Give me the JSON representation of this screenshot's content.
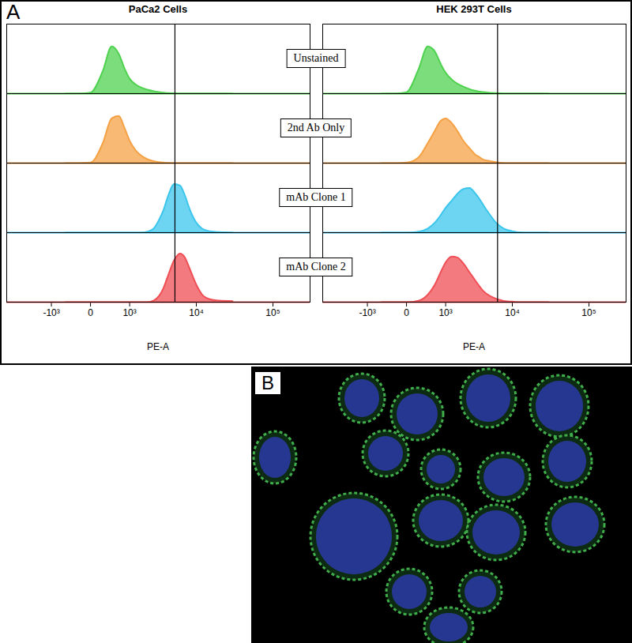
{
  "figure_label": "A",
  "chart_data": [
    {
      "type": "area",
      "title": "PaCa2 Cells",
      "xlabel": "PE-A",
      "log": "x",
      "tick_labels": "x",
      "x": [
        -500,
        -200,
        0,
        200,
        400,
        600,
        800,
        1000,
        1300,
        1600,
        2000,
        2500,
        3000,
        3500,
        4000,
        5000,
        6000,
        7000,
        8000,
        10000,
        12000,
        15000,
        20000,
        30000
      ],
      "series": [
        {
          "name": "Unstained",
          "color": "#4fd24f",
          "values": [
            0,
            0,
            2,
            45,
            95,
            80,
            50,
            30,
            18,
            12,
            8,
            5,
            3,
            2,
            1,
            0.5,
            0,
            0,
            0,
            0,
            0,
            0,
            0,
            0
          ]
        },
        {
          "name": "2nd Ab Only",
          "color": "#f5a145",
          "values": [
            0,
            0,
            1,
            40,
            90,
            95,
            70,
            45,
            25,
            15,
            8,
            4,
            2,
            1,
            0.5,
            0,
            0,
            0,
            0,
            0,
            0,
            0,
            0,
            0
          ]
        },
        {
          "name": "mAb Clone 1",
          "color": "#3cc6ec",
          "values": [
            0,
            0,
            0,
            0,
            0,
            0,
            0,
            0,
            0,
            0,
            2,
            8,
            25,
            45,
            70,
            98,
            95,
            75,
            50,
            20,
            8,
            3,
            1,
            0
          ]
        },
        {
          "name": "mAb Clone 2",
          "color": "#ef4f55",
          "values": [
            0,
            0,
            0,
            0,
            0,
            0,
            0,
            0,
            0,
            0,
            0,
            3,
            12,
            28,
            50,
            85,
            98,
            90,
            70,
            35,
            15,
            6,
            3,
            2
          ]
        }
      ],
      "xlim": [
        -5000,
        300000
      ],
      "xticks": [
        {
          "value": -1000,
          "label": "-10³"
        },
        0,
        {
          "value": 1000,
          "label": "10³"
        },
        {
          "value": 10000,
          "label": "10⁴"
        },
        {
          "value": 100000,
          "label": "10⁵"
        }
      ],
      "ylim": [
        0,
        140
      ],
      "gate_line": 5100
    },
    {
      "type": "area",
      "title": "HEK 293T Cells",
      "xlabel": "PE-A",
      "log": "x",
      "tick_labels": "x",
      "x": [
        -500,
        -200,
        0,
        200,
        400,
        600,
        800,
        1000,
        1300,
        1600,
        2000,
        2500,
        3000,
        3500,
        4000,
        5000,
        6000,
        7000,
        8000,
        10000,
        12000,
        15000,
        20000,
        30000
      ],
      "series": [
        {
          "name": "Unstained",
          "color": "#4fd24f",
          "values": [
            0,
            0,
            3,
            50,
            95,
            85,
            60,
            42,
            28,
            20,
            14,
            9,
            6,
            4,
            3,
            1.5,
            1,
            0.5,
            0,
            0,
            0,
            0,
            0,
            0
          ]
        },
        {
          "name": "2nd Ab Only",
          "color": "#f5a145",
          "values": [
            0,
            0,
            1,
            12,
            40,
            65,
            85,
            90,
            80,
            65,
            45,
            30,
            18,
            12,
            7,
            4,
            2,
            1,
            0,
            0,
            0,
            0,
            0,
            0
          ]
        },
        {
          "name": "mAb Clone 1",
          "color": "#3cc6ec",
          "values": [
            0,
            0,
            0,
            2,
            8,
            20,
            35,
            50,
            65,
            78,
            88,
            90,
            80,
            68,
            55,
            35,
            20,
            12,
            7,
            3,
            1,
            0,
            0,
            0
          ]
        },
        {
          "name": "mAb Clone 2",
          "color": "#ef4f55",
          "values": [
            0,
            0,
            0,
            3,
            15,
            35,
            60,
            80,
            92,
            90,
            78,
            60,
            45,
            32,
            22,
            12,
            7,
            4,
            2,
            1,
            0,
            0,
            0,
            0
          ]
        }
      ],
      "xlim": [
        -5000,
        300000
      ],
      "xticks": [
        {
          "value": -1000,
          "label": "-10³"
        },
        0,
        {
          "value": 1000,
          "label": "10³"
        },
        {
          "value": 10000,
          "label": "10⁴"
        },
        {
          "value": 100000,
          "label": "10⁵"
        }
      ],
      "ylim": [
        0,
        140
      ],
      "gate_line": 6300
    }
  ],
  "image_panel": {
    "label": "B"
  }
}
